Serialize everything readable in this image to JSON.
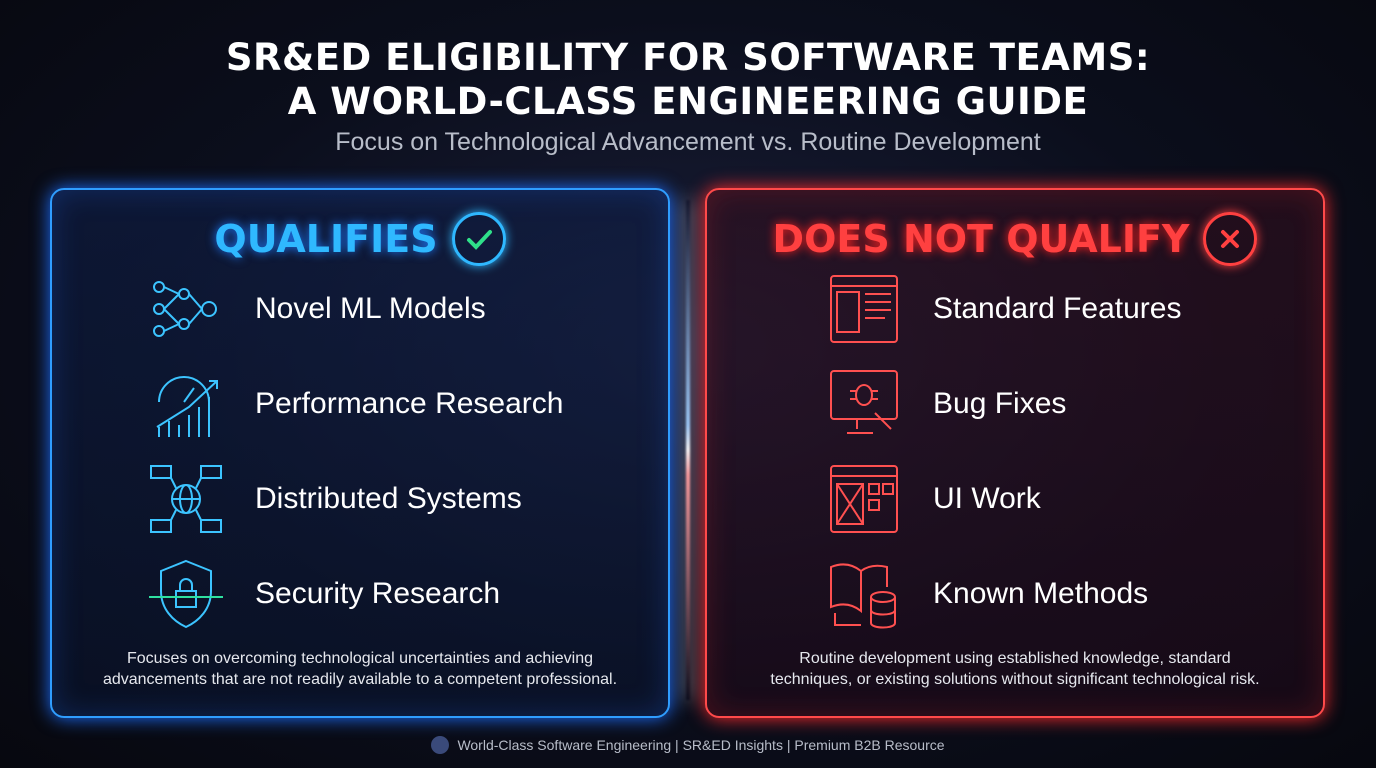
{
  "title_line1": "SR&ED ELIGIBILITY FOR SOFTWARE TEAMS:",
  "title_line2": "A WORLD-CLASS ENGINEERING GUIDE",
  "subtitle": "Focus on Technological Advancement vs. Routine Development",
  "qualifies": {
    "heading": "QUALIFIES",
    "badge_icon": "check-circle-icon",
    "color": "#2fb8ff",
    "items": [
      {
        "label": "Novel ML Models",
        "icon": "neural-network-icon"
      },
      {
        "label": "Performance Research",
        "icon": "gauge-chart-icon"
      },
      {
        "label": "Distributed Systems",
        "icon": "globe-network-icon"
      },
      {
        "label": "Security Research",
        "icon": "shield-lock-icon"
      }
    ],
    "description_line1": "Focuses on overcoming technological uncertainties and achieving",
    "description_line2": "advancements that are not readily available to a competent professional."
  },
  "not_qualify": {
    "heading": "DOES NOT QUALIFY",
    "badge_icon": "x-circle-icon",
    "color": "#ff4040",
    "items": [
      {
        "label": "Standard Features",
        "icon": "browser-layout-icon"
      },
      {
        "label": "Bug Fixes",
        "icon": "monitor-bug-icon"
      },
      {
        "label": "UI Work",
        "icon": "ui-wireframe-icon"
      },
      {
        "label": "Known Methods",
        "icon": "book-database-icon"
      }
    ],
    "description_line1": "Routine development using established knowledge, standard",
    "description_line2": "techniques, or existing solutions without significant technological risk."
  },
  "footer": "World-Class Software Engineering | SR&ED Insights | Premium B2B Resource"
}
